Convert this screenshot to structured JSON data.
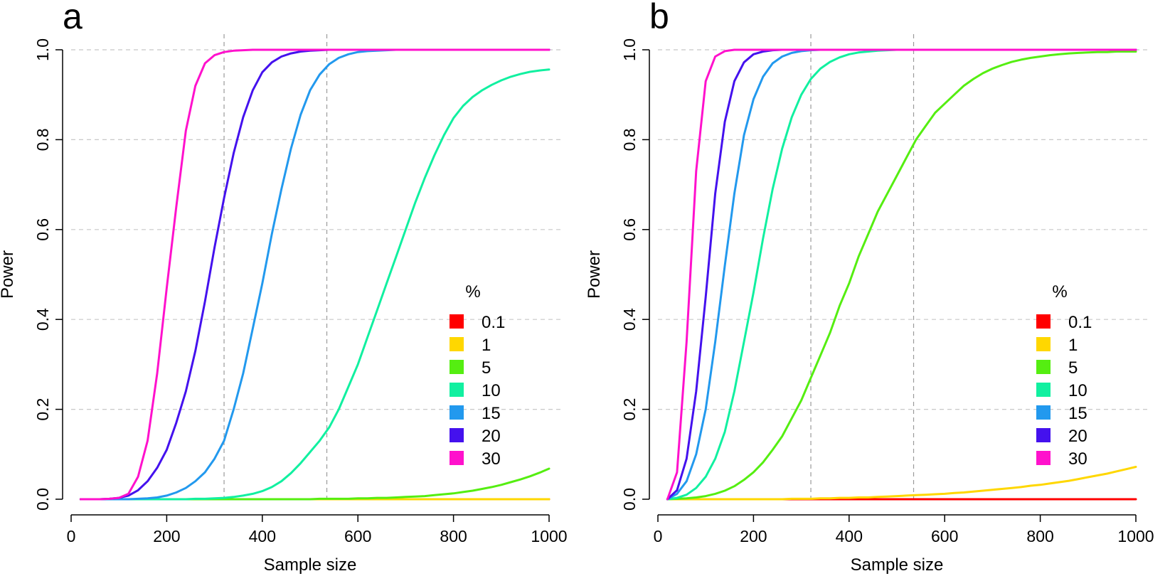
{
  "chart_data": [
    {
      "type": "line",
      "panel_label": "a",
      "xlabel": "Sample size",
      "ylabel": "Power",
      "xlim": [
        0,
        1000
      ],
      "ylim": [
        0,
        1
      ],
      "x_ticks": [
        "0",
        "200",
        "400",
        "600",
        "800",
        "1000"
      ],
      "x_tick_values": [
        0,
        200,
        400,
        600,
        800,
        1000
      ],
      "y_ticks": [
        "0.0",
        "0.2",
        "0.4",
        "0.6",
        "0.8",
        "1.0"
      ],
      "y_tick_values": [
        0,
        0.2,
        0.4,
        0.6,
        0.8,
        1.0
      ],
      "hgrid": [
        0.2,
        0.4,
        0.6,
        0.8,
        1.0
      ],
      "vlines": [
        320,
        535
      ],
      "legend_title": "%",
      "x": [
        20,
        40,
        60,
        80,
        100,
        120,
        140,
        160,
        180,
        200,
        220,
        240,
        260,
        280,
        300,
        320,
        340,
        360,
        380,
        400,
        420,
        440,
        460,
        480,
        500,
        520,
        540,
        560,
        580,
        600,
        620,
        640,
        660,
        680,
        700,
        720,
        740,
        760,
        780,
        800,
        820,
        840,
        860,
        880,
        900,
        920,
        940,
        960,
        980,
        1000
      ],
      "series": [
        {
          "name": "0.1",
          "color": "#ff0000",
          "values": [
            0,
            0,
            0,
            0,
            0,
            0,
            0,
            0,
            0,
            0,
            0,
            0,
            0,
            0,
            0,
            0,
            0,
            0,
            0,
            0,
            0,
            0,
            0,
            0,
            0,
            0,
            0,
            0,
            0,
            0,
            0,
            0,
            0,
            0,
            0,
            0,
            0,
            0,
            0,
            0,
            0,
            0,
            0,
            0,
            0,
            0,
            0,
            0,
            0,
            0
          ]
        },
        {
          "name": "1",
          "color": "#ffd700",
          "values": [
            0,
            0,
            0,
            0,
            0,
            0,
            0,
            0,
            0,
            0,
            0,
            0,
            0,
            0,
            0,
            0,
            0,
            0,
            0,
            0,
            0,
            0,
            0,
            0,
            0,
            0,
            0,
            0,
            0,
            0,
            0,
            0,
            0,
            0,
            0,
            0,
            0,
            0,
            0,
            0,
            0,
            0,
            0,
            0,
            0,
            0,
            0,
            0,
            0,
            0
          ]
        },
        {
          "name": "5",
          "color": "#55ee11",
          "values": [
            0,
            0,
            0,
            0,
            0,
            0,
            0,
            0,
            0,
            0,
            0,
            0,
            0,
            0,
            0,
            0,
            0,
            0,
            0,
            0,
            0,
            0,
            0,
            0,
            0,
            0.001,
            0.001,
            0.001,
            0.001,
            0.002,
            0.002,
            0.003,
            0.003,
            0.004,
            0.005,
            0.006,
            0.007,
            0.009,
            0.011,
            0.013,
            0.016,
            0.019,
            0.023,
            0.027,
            0.032,
            0.038,
            0.044,
            0.051,
            0.059,
            0.068
          ]
        },
        {
          "name": "10",
          "color": "#11f0a0",
          "values": [
            0,
            0,
            0,
            0,
            0,
            0,
            0,
            0,
            0,
            0,
            0,
            0,
            0.001,
            0.001,
            0.002,
            0.003,
            0.005,
            0.008,
            0.012,
            0.018,
            0.027,
            0.04,
            0.058,
            0.08,
            0.105,
            0.13,
            0.16,
            0.2,
            0.25,
            0.3,
            0.36,
            0.42,
            0.48,
            0.54,
            0.6,
            0.66,
            0.715,
            0.765,
            0.81,
            0.848,
            0.875,
            0.895,
            0.91,
            0.922,
            0.932,
            0.94,
            0.946,
            0.951,
            0.954,
            0.956
          ]
        },
        {
          "name": "15",
          "color": "#2299ee",
          "values": [
            0,
            0,
            0,
            0,
            0,
            0,
            0.001,
            0.002,
            0.004,
            0.008,
            0.015,
            0.025,
            0.04,
            0.06,
            0.09,
            0.13,
            0.2,
            0.28,
            0.38,
            0.48,
            0.59,
            0.69,
            0.78,
            0.855,
            0.91,
            0.945,
            0.968,
            0.982,
            0.99,
            0.995,
            0.997,
            0.998,
            0.999,
            1,
            1,
            1,
            1,
            1,
            1,
            1,
            1,
            1,
            1,
            1,
            1,
            1,
            1,
            1,
            1,
            1
          ]
        },
        {
          "name": "20",
          "color": "#4411ee",
          "values": [
            0,
            0,
            0,
            0.001,
            0.003,
            0.008,
            0.02,
            0.04,
            0.07,
            0.11,
            0.17,
            0.24,
            0.33,
            0.44,
            0.56,
            0.67,
            0.77,
            0.85,
            0.91,
            0.95,
            0.972,
            0.985,
            0.992,
            0.996,
            0.998,
            0.999,
            1,
            1,
            1,
            1,
            1,
            1,
            1,
            1,
            1,
            1,
            1,
            1,
            1,
            1,
            1,
            1,
            1,
            1,
            1,
            1,
            1,
            1,
            1,
            1
          ]
        },
        {
          "name": "30",
          "color": "#ff11cc",
          "values": [
            0,
            0,
            0,
            0.001,
            0.003,
            0.012,
            0.05,
            0.13,
            0.28,
            0.47,
            0.65,
            0.82,
            0.92,
            0.97,
            0.988,
            0.995,
            0.998,
            0.999,
            1,
            1,
            1,
            1,
            1,
            1,
            1,
            1,
            1,
            1,
            1,
            1,
            1,
            1,
            1,
            1,
            1,
            1,
            1,
            1,
            1,
            1,
            1,
            1,
            1,
            1,
            1,
            1,
            1,
            1,
            1,
            1
          ]
        }
      ]
    },
    {
      "type": "line",
      "panel_label": "b",
      "xlabel": "Sample size",
      "ylabel": "Power",
      "xlim": [
        0,
        1000
      ],
      "ylim": [
        0,
        1
      ],
      "x_ticks": [
        "0",
        "200",
        "400",
        "600",
        "800",
        "1000"
      ],
      "x_tick_values": [
        0,
        200,
        400,
        600,
        800,
        1000
      ],
      "y_ticks": [
        "0.0",
        "0.2",
        "0.4",
        "0.6",
        "0.8",
        "1.0"
      ],
      "y_tick_values": [
        0,
        0.2,
        0.4,
        0.6,
        0.8,
        1.0
      ],
      "hgrid": [
        0.2,
        0.4,
        0.6,
        0.8,
        1.0
      ],
      "vlines": [
        320,
        535
      ],
      "legend_title": "%",
      "x": [
        20,
        40,
        60,
        80,
        100,
        120,
        140,
        160,
        180,
        200,
        220,
        240,
        260,
        280,
        300,
        320,
        340,
        360,
        380,
        400,
        420,
        440,
        460,
        480,
        500,
        520,
        540,
        560,
        580,
        600,
        620,
        640,
        660,
        680,
        700,
        720,
        740,
        760,
        780,
        800,
        820,
        840,
        860,
        880,
        900,
        920,
        940,
        960,
        980,
        1000
      ],
      "series": [
        {
          "name": "0.1",
          "color": "#ff0000",
          "values": [
            0,
            0,
            0,
            0,
            0,
            0,
            0,
            0,
            0,
            0,
            0,
            0,
            0,
            0,
            0,
            0,
            0,
            0,
            0,
            0,
            0,
            0,
            0,
            0,
            0,
            0,
            0,
            0,
            0,
            0,
            0,
            0,
            0,
            0,
            0,
            0,
            0,
            0,
            0,
            0,
            0,
            0,
            0,
            0,
            0,
            0,
            0,
            0,
            0,
            0
          ]
        },
        {
          "name": "1",
          "color": "#ffd700",
          "values": [
            0,
            0,
            0,
            0,
            0,
            0,
            0,
            0,
            0,
            0,
            0,
            0,
            0,
            0.001,
            0.001,
            0.001,
            0.002,
            0.002,
            0.003,
            0.003,
            0.004,
            0.004,
            0.005,
            0.006,
            0.007,
            0.008,
            0.009,
            0.01,
            0.011,
            0.012,
            0.014,
            0.015,
            0.017,
            0.019,
            0.021,
            0.023,
            0.025,
            0.027,
            0.03,
            0.032,
            0.035,
            0.038,
            0.041,
            0.045,
            0.049,
            0.053,
            0.057,
            0.062,
            0.067,
            0.072
          ]
        },
        {
          "name": "5",
          "color": "#55ee11",
          "values": [
            0,
            0.001,
            0.002,
            0.004,
            0.007,
            0.012,
            0.019,
            0.029,
            0.043,
            0.06,
            0.082,
            0.11,
            0.14,
            0.18,
            0.22,
            0.27,
            0.32,
            0.37,
            0.43,
            0.48,
            0.54,
            0.59,
            0.64,
            0.68,
            0.72,
            0.76,
            0.8,
            0.83,
            0.86,
            0.88,
            0.9,
            0.92,
            0.935,
            0.948,
            0.958,
            0.966,
            0.973,
            0.978,
            0.982,
            0.985,
            0.988,
            0.99,
            0.992,
            0.993,
            0.994,
            0.995,
            0.995,
            0.996,
            0.996,
            0.996
          ]
        },
        {
          "name": "10",
          "color": "#11f0a0",
          "values": [
            0,
            0.003,
            0.01,
            0.025,
            0.05,
            0.09,
            0.15,
            0.24,
            0.35,
            0.46,
            0.58,
            0.69,
            0.78,
            0.85,
            0.9,
            0.935,
            0.958,
            0.973,
            0.983,
            0.99,
            0.994,
            0.996,
            0.998,
            0.999,
            1,
            1,
            1,
            1,
            1,
            1,
            1,
            1,
            1,
            1,
            1,
            1,
            1,
            1,
            1,
            1,
            1,
            1,
            1,
            1,
            1,
            1,
            1,
            1,
            1,
            1
          ]
        },
        {
          "name": "15",
          "color": "#2299ee",
          "values": [
            0,
            0.012,
            0.04,
            0.1,
            0.2,
            0.35,
            0.52,
            0.68,
            0.81,
            0.89,
            0.94,
            0.97,
            0.985,
            0.993,
            0.997,
            0.999,
            1,
            1,
            1,
            1,
            1,
            1,
            1,
            1,
            1,
            1,
            1,
            1,
            1,
            1,
            1,
            1,
            1,
            1,
            1,
            1,
            1,
            1,
            1,
            1,
            1,
            1,
            1,
            1,
            1,
            1,
            1,
            1,
            1,
            1
          ]
        },
        {
          "name": "20",
          "color": "#4411ee",
          "values": [
            0,
            0.02,
            0.09,
            0.24,
            0.45,
            0.68,
            0.84,
            0.93,
            0.972,
            0.99,
            0.996,
            0.999,
            1,
            1,
            1,
            1,
            1,
            1,
            1,
            1,
            1,
            1,
            1,
            1,
            1,
            1,
            1,
            1,
            1,
            1,
            1,
            1,
            1,
            1,
            1,
            1,
            1,
            1,
            1,
            1,
            1,
            1,
            1,
            1,
            1,
            1,
            1,
            1,
            1,
            1
          ]
        },
        {
          "name": "30",
          "color": "#ff11cc",
          "values": [
            0,
            0.06,
            0.35,
            0.73,
            0.93,
            0.985,
            0.997,
            1,
            1,
            1,
            1,
            1,
            1,
            1,
            1,
            1,
            1,
            1,
            1,
            1,
            1,
            1,
            1,
            1,
            1,
            1,
            1,
            1,
            1,
            1,
            1,
            1,
            1,
            1,
            1,
            1,
            1,
            1,
            1,
            1,
            1,
            1,
            1,
            1,
            1,
            1,
            1,
            1,
            1,
            1
          ]
        }
      ]
    }
  ]
}
